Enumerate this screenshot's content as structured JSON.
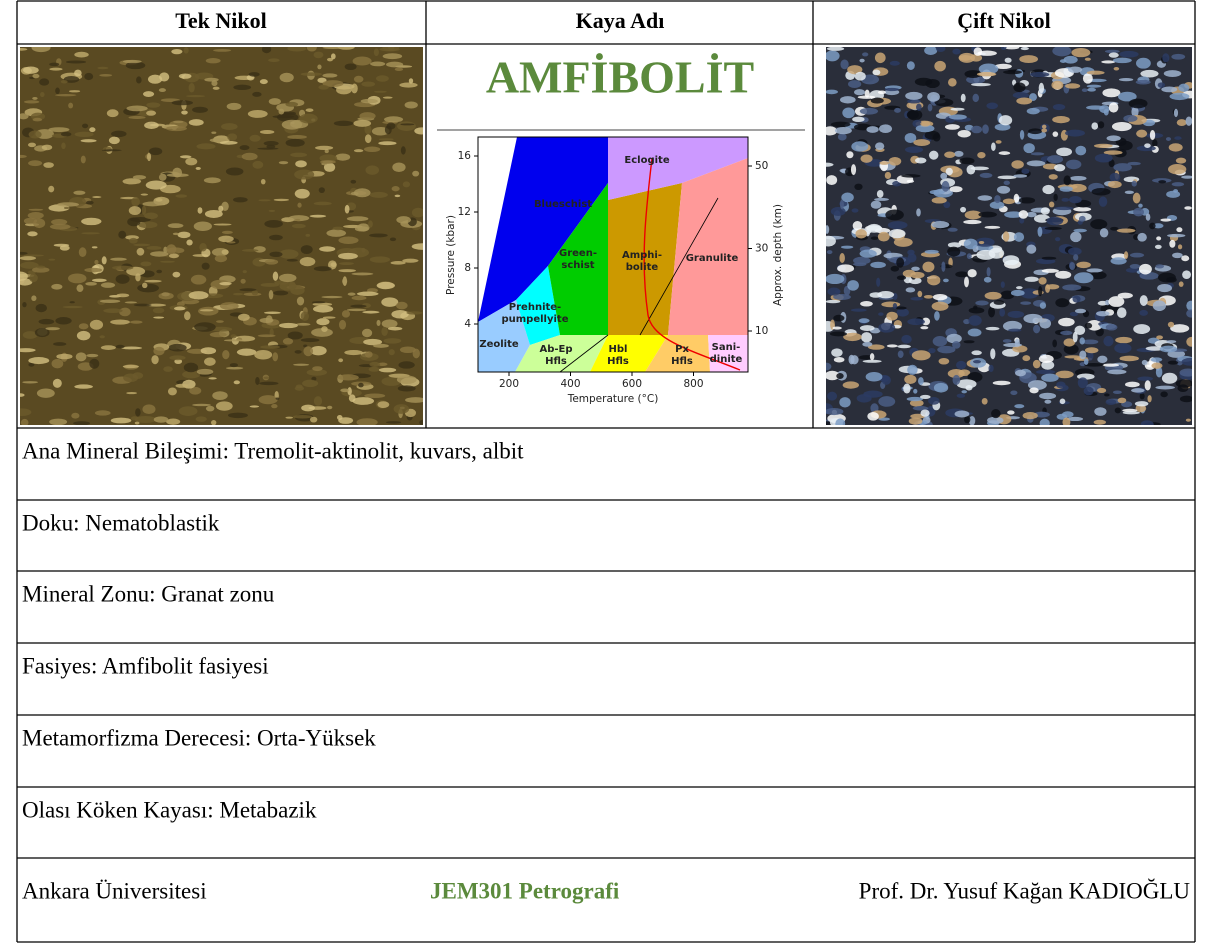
{
  "header": {
    "columns": [
      "Tek Nikol",
      "Kaya Adı",
      "Çift Nikol"
    ]
  },
  "rock_name": "AMFİBOLİT",
  "diagram": {
    "x_label": "Temperature (°C)",
    "y_label": "Pressure (kbar)",
    "y2_label": "Approx. depth (km)",
    "xticks": [
      200,
      400,
      600,
      800
    ],
    "yticks": [
      4,
      8,
      12,
      16
    ],
    "y2ticks": [
      10,
      30,
      50
    ],
    "regions": [
      [
        "Eclogite"
      ],
      [
        "Blueschist"
      ],
      [
        "Green-",
        "schist"
      ],
      [
        "Amphi-",
        "bolite"
      ],
      [
        "Granulite"
      ],
      [
        "Prehnite-",
        "pumpellyite"
      ],
      [
        "Zeolite"
      ],
      [
        "Ab-Ep",
        "Hfls"
      ],
      [
        "Hbl",
        "Hfls"
      ],
      [
        "Px",
        "Hfls"
      ],
      [
        "Sani-",
        "dinite"
      ]
    ]
  },
  "rows": [
    "Ana Mineral Bileşimi: Tremolit-aktinolit, kuvars, albit",
    "Doku: Nematoblastik",
    "Mineral Zonu: Granat zonu",
    "Fasiyes: Amfibolit fasiyesi",
    "Metamorfizma Derecesi: Orta-Yüksek",
    "Olası Köken Kayası: Metabazik"
  ],
  "footer": {
    "left": "Ankara Üniversitesi",
    "center": "JEM301 Petrografi",
    "right": "Prof. Dr. Yusuf Kağan KADIOĞLU"
  }
}
